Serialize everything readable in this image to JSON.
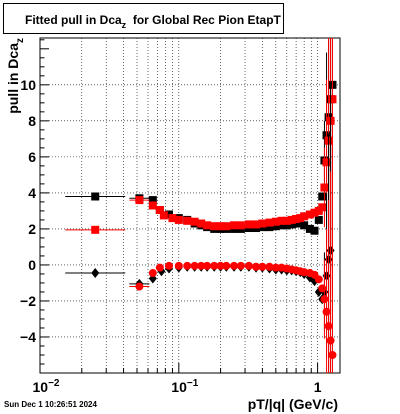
{
  "title": {
    "main": "Fitted pull in Dca",
    "subscript": "z",
    "suffix": "for Global Rec Pion EtapT"
  },
  "timestamp": "Sun Dec  1 10:26:51 2024",
  "chart_data": {
    "type": "scatter",
    "x_scale": "log",
    "xlabel": "pT/|q| (GeV/c)",
    "ylabel": {
      "main": "pull in Dca",
      "subscript": "z"
    },
    "xlim": [
      0.01,
      1.45
    ],
    "ylim": [
      -6,
      12.6
    ],
    "grid": true,
    "x_major_ticks": [
      {
        "value": 0.01,
        "base": "10",
        "exp": "−2"
      },
      {
        "value": 0.1,
        "base": "10",
        "exp": "−1"
      },
      {
        "value": 1,
        "base": "1",
        "exp": ""
      }
    ],
    "y_ticks": [
      -4,
      -2,
      0,
      2,
      4,
      6,
      8,
      10
    ],
    "series": [
      {
        "marker": "square",
        "color": "#000000",
        "points": [
          [
            0.025,
            3.8
          ],
          [
            0.052,
            3.7
          ],
          [
            0.065,
            3.6
          ],
          [
            0.073,
            3.05
          ],
          [
            0.085,
            2.8
          ],
          [
            0.1,
            2.6
          ],
          [
            0.115,
            2.5
          ],
          [
            0.13,
            2.3
          ],
          [
            0.145,
            2.2
          ],
          [
            0.16,
            2.1
          ],
          [
            0.18,
            2.0
          ],
          [
            0.2,
            2.0
          ],
          [
            0.22,
            2.0
          ],
          [
            0.25,
            2.0
          ],
          [
            0.28,
            2.0
          ],
          [
            0.32,
            2.05
          ],
          [
            0.36,
            2.05
          ],
          [
            0.4,
            2.1
          ],
          [
            0.45,
            2.1
          ],
          [
            0.5,
            2.15
          ],
          [
            0.55,
            2.2
          ],
          [
            0.6,
            2.2
          ],
          [
            0.65,
            2.25
          ],
          [
            0.7,
            2.3
          ],
          [
            0.75,
            2.35
          ],
          [
            0.8,
            2.2
          ],
          [
            0.88,
            2.0
          ],
          [
            0.95,
            1.9
          ],
          [
            1.02,
            2.5
          ],
          [
            1.08,
            3.8
          ],
          [
            1.12,
            5.8
          ],
          [
            1.16,
            7.2
          ],
          [
            1.2,
            8.2
          ],
          [
            1.24,
            9.2
          ],
          [
            1.28,
            10.0
          ]
        ]
      },
      {
        "marker": "square",
        "color": "#ff0000",
        "points": [
          [
            0.025,
            1.95
          ],
          [
            0.052,
            3.6
          ],
          [
            0.065,
            3.3
          ],
          [
            0.073,
            3.05
          ],
          [
            0.078,
            2.75
          ],
          [
            0.09,
            2.6
          ],
          [
            0.1,
            2.5
          ],
          [
            0.115,
            2.45
          ],
          [
            0.13,
            2.4
          ],
          [
            0.145,
            2.3
          ],
          [
            0.16,
            2.2
          ],
          [
            0.18,
            2.15
          ],
          [
            0.2,
            2.15
          ],
          [
            0.22,
            2.15
          ],
          [
            0.25,
            2.2
          ],
          [
            0.28,
            2.2
          ],
          [
            0.32,
            2.25
          ],
          [
            0.36,
            2.25
          ],
          [
            0.4,
            2.3
          ],
          [
            0.45,
            2.35
          ],
          [
            0.5,
            2.4
          ],
          [
            0.55,
            2.45
          ],
          [
            0.6,
            2.45
          ],
          [
            0.65,
            2.5
          ],
          [
            0.7,
            2.55
          ],
          [
            0.75,
            2.6
          ],
          [
            0.8,
            2.7
          ],
          [
            0.88,
            2.8
          ],
          [
            0.95,
            2.9
          ],
          [
            1.02,
            3.0
          ],
          [
            1.08,
            3.2
          ],
          [
            1.12,
            4.3
          ],
          [
            1.16,
            5.7
          ],
          [
            1.2,
            6.9
          ],
          [
            1.24,
            8.0
          ],
          [
            1.28,
            9.2
          ]
        ]
      },
      {
        "marker": "diamond",
        "color": "#000000",
        "points": [
          [
            0.025,
            -0.45
          ],
          [
            0.052,
            -1.05
          ],
          [
            0.065,
            -0.75
          ],
          [
            0.075,
            -0.35
          ],
          [
            0.085,
            -0.2
          ],
          [
            0.1,
            -0.15
          ],
          [
            0.115,
            -0.1
          ],
          [
            0.13,
            -0.1
          ],
          [
            0.145,
            -0.1
          ],
          [
            0.16,
            -0.1
          ],
          [
            0.18,
            -0.1
          ],
          [
            0.2,
            -0.1
          ],
          [
            0.22,
            -0.1
          ],
          [
            0.25,
            -0.1
          ],
          [
            0.28,
            -0.1
          ],
          [
            0.32,
            -0.1
          ],
          [
            0.36,
            -0.15
          ],
          [
            0.4,
            -0.15
          ],
          [
            0.45,
            -0.2
          ],
          [
            0.5,
            -0.25
          ],
          [
            0.55,
            -0.25
          ],
          [
            0.6,
            -0.3
          ],
          [
            0.65,
            -0.3
          ],
          [
            0.7,
            -0.35
          ],
          [
            0.75,
            -0.4
          ],
          [
            0.8,
            -0.5
          ],
          [
            0.88,
            -0.7
          ],
          [
            0.95,
            -0.9
          ],
          [
            1.02,
            -1.5
          ],
          [
            1.08,
            -1.9
          ],
          [
            1.12,
            -1.5
          ],
          [
            1.16,
            -0.6
          ],
          [
            1.2,
            0.3
          ],
          [
            1.24,
            0.8
          ]
        ]
      },
      {
        "marker": "circle",
        "color": "#ff0000",
        "points": [
          [
            0.052,
            -1.2
          ],
          [
            0.065,
            -0.45
          ],
          [
            0.073,
            -0.15
          ],
          [
            0.085,
            -0.05
          ],
          [
            0.1,
            -0.05
          ],
          [
            0.115,
            -0.05
          ],
          [
            0.13,
            -0.05
          ],
          [
            0.145,
            -0.05
          ],
          [
            0.16,
            -0.05
          ],
          [
            0.18,
            -0.05
          ],
          [
            0.2,
            -0.05
          ],
          [
            0.22,
            -0.05
          ],
          [
            0.25,
            -0.05
          ],
          [
            0.28,
            -0.05
          ],
          [
            0.32,
            -0.05
          ],
          [
            0.36,
            -0.1
          ],
          [
            0.4,
            -0.1
          ],
          [
            0.45,
            -0.1
          ],
          [
            0.5,
            -0.15
          ],
          [
            0.55,
            -0.15
          ],
          [
            0.6,
            -0.2
          ],
          [
            0.65,
            -0.25
          ],
          [
            0.7,
            -0.3
          ],
          [
            0.75,
            -0.35
          ],
          [
            0.8,
            -0.4
          ],
          [
            0.88,
            -0.45
          ],
          [
            0.95,
            -0.55
          ],
          [
            1.02,
            -0.8
          ],
          [
            1.08,
            -1.3
          ],
          [
            1.12,
            -1.9
          ],
          [
            1.16,
            -2.6
          ],
          [
            1.2,
            -3.4
          ],
          [
            1.24,
            -4.2
          ],
          [
            1.28,
            -5.0
          ]
        ]
      }
    ]
  }
}
